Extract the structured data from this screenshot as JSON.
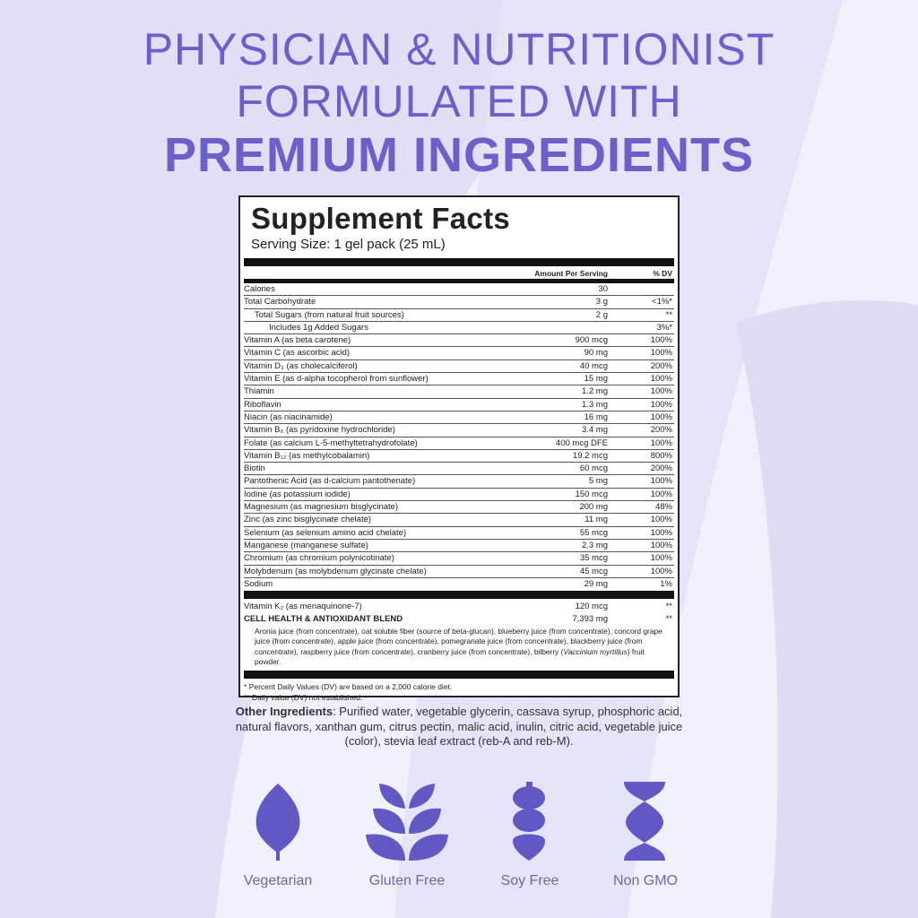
{
  "headline": {
    "line1": "PHYSICIAN & NUTRITIONIST",
    "line2": "FORMULATED WITH",
    "line3": "PREMIUM INGREDIENTS"
  },
  "colors": {
    "accent": "#6b60c9",
    "icon": "#6158c4",
    "background": "#eef0fb",
    "shape": "#dcdcf5"
  },
  "facts": {
    "title": "Supplement Facts",
    "serving": "Serving Size: 1 gel pack (25 mL)",
    "col_amount": "Amount Per Serving",
    "col_dv": "% DV",
    "rows": [
      {
        "name": "Calories",
        "amount": "30",
        "dv": "",
        "indent": 0
      },
      {
        "name": "Total Carbohydrate",
        "amount": "3 g",
        "dv": "<1%*",
        "indent": 0
      },
      {
        "name": "Total Sugars (from natural fruit sources)",
        "amount": "2 g",
        "dv": "**",
        "indent": 1
      },
      {
        "name": "Includes 1g Added Sugars",
        "amount": "",
        "dv": "3%*",
        "indent": 2
      },
      {
        "name": "Vitamin A (as beta carotene)",
        "amount": "900 mcg",
        "dv": "100%",
        "indent": 0
      },
      {
        "name": "Vitamin C (as ascorbic acid)",
        "amount": "90 mg",
        "dv": "100%",
        "indent": 0
      },
      {
        "name": "Vitamin D₃ (as cholecalciferol)",
        "amount": "40 mcg",
        "dv": "200%",
        "indent": 0
      },
      {
        "name": "Vitamin E (as d-alpha tocopherol from sunflower)",
        "amount": "15 mg",
        "dv": "100%",
        "indent": 0
      },
      {
        "name": "Thiamin",
        "amount": "1.2 mg",
        "dv": "100%",
        "indent": 0
      },
      {
        "name": "Riboflavin",
        "amount": "1.3 mg",
        "dv": "100%",
        "indent": 0
      },
      {
        "name": "Niacin (as niacinamide)",
        "amount": "16 mg",
        "dv": "100%",
        "indent": 0
      },
      {
        "name": "Vitamin B₆ (as pyridoxine hydrochloride)",
        "amount": "3.4 mg",
        "dv": "200%",
        "indent": 0
      },
      {
        "name": "Folate (as calcium L-5-methyltetrahydrofolate)",
        "amount": "400 mcg DFE",
        "dv": "100%",
        "indent": 0
      },
      {
        "name": "Vitamin B₁₂ (as methylcobalamin)",
        "amount": "19.2 mcg",
        "dv": "800%",
        "indent": 0
      },
      {
        "name": "Biotin",
        "amount": "60 mcg",
        "dv": "200%",
        "indent": 0
      },
      {
        "name": "Pantothenic Acid (as d-calcium pantothenate)",
        "amount": "5 mg",
        "dv": "100%",
        "indent": 0
      },
      {
        "name": "Iodine (as potassium iodide)",
        "amount": "150 mcg",
        "dv": "100%",
        "indent": 0
      },
      {
        "name": "Magnesium (as magnesium bisglycinate)",
        "amount": "200 mg",
        "dv": "48%",
        "indent": 0
      },
      {
        "name": "Zinc (as zinc bisglycinate chelate)",
        "amount": "11 mg",
        "dv": "100%",
        "indent": 0
      },
      {
        "name": "Selenium (as selenium amino acid chelate)",
        "amount": "55 mcg",
        "dv": "100%",
        "indent": 0
      },
      {
        "name": "Manganese (manganese sulfate)",
        "amount": "2.3 mg",
        "dv": "100%",
        "indent": 0
      },
      {
        "name": "Chromium (as chromium polynicotinate)",
        "amount": "35 mcg",
        "dv": "100%",
        "indent": 0
      },
      {
        "name": "Molybdenum (as molybdenum glycinate chelate)",
        "amount": "45 mcg",
        "dv": "100%",
        "indent": 0
      },
      {
        "name": "Sodium",
        "amount": "29 mg",
        "dv": "1%",
        "indent": 0
      }
    ],
    "vitk": {
      "name": "Vitamin K₂ (as menaquinone-7)",
      "amount": "120 mcg",
      "dv": "**"
    },
    "blend": {
      "name": "CELL HEALTH & ANTIOXIDANT BLEND",
      "amount": "7,393 mg",
      "dv": "**",
      "text": "Aronia juice (from concentrate), oat soluble fiber (source of beta-glucan), blueberry juice (from concentrate), concord grape juice (from concentrate), apple juice (from concentrate), pomegranate juice (from concentrate), blackberry juice (from concentrate), raspberry juice (from concentrate), cranberry juice (from concentrate), bilberry (",
      "italic": "Vaccinium myrtillus",
      "text_end": ") fruit powder."
    },
    "foot1": "* Percent Daily Values (DV) are based on a 2,000 calorie diet.",
    "foot2": "** Daily value (DV) not established."
  },
  "other": {
    "label": "Other Ingredients",
    "text": ": Purified water, vegetable glycerin, cassava syrup, phosphoric acid, natural flavors, xanthan gum, citrus pectin, malic acid, inulin, citric acid, vegetable juice (color), stevia leaf extract (reb-A and reb-M)."
  },
  "badges": [
    {
      "label": "Vegetarian",
      "icon": "leaf-icon"
    },
    {
      "label": "Gluten Free",
      "icon": "wheat-icon"
    },
    {
      "label": "Soy Free",
      "icon": "soybean-icon"
    },
    {
      "label": "Non GMO",
      "icon": "dna-icon"
    }
  ]
}
